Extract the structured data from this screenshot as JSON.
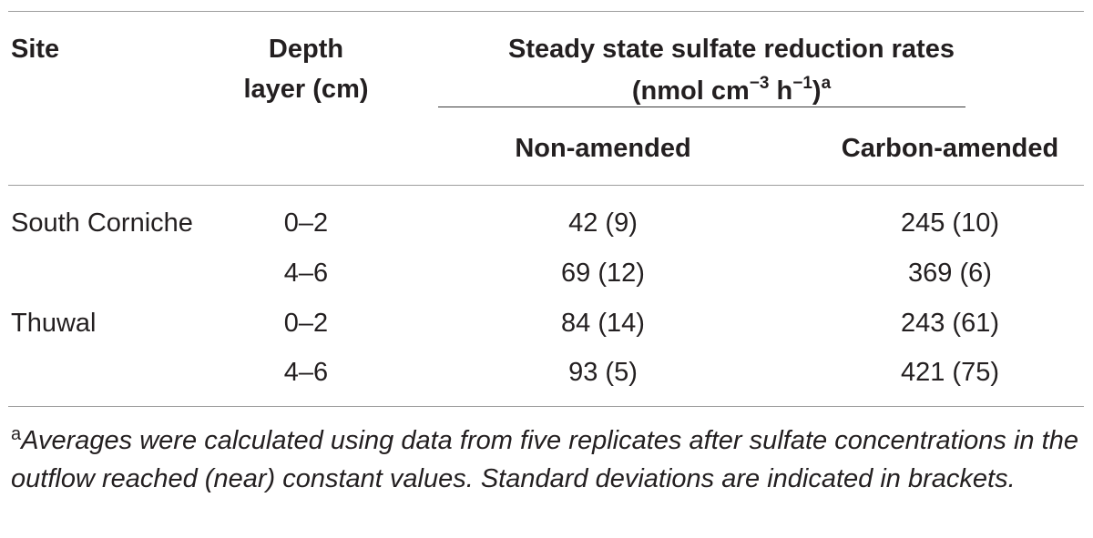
{
  "table": {
    "headers": {
      "site": "Site",
      "depth_line1": "Depth",
      "depth_line2": "layer (cm)",
      "rates_line1": "Steady state sulfate reduction rates",
      "rates_unit_prefix": "(nmol cm",
      "rates_unit_sup1": "−3",
      "rates_unit_mid": " h",
      "rates_unit_sup2": "−1",
      "rates_unit_suffix": ")",
      "rates_footnote_mark": "a",
      "non_amended": "Non-amended",
      "carbon_amended": "Carbon-amended"
    },
    "rows": [
      {
        "site": "South Corniche",
        "depth": "0–2",
        "non_amended": "42 (9)",
        "carbon_amended": "245 (10)"
      },
      {
        "site": "",
        "depth": "4–6",
        "non_amended": "69 (12)",
        "carbon_amended": "369 (6)"
      },
      {
        "site": "Thuwal",
        "depth": "0–2",
        "non_amended": "84 (14)",
        "carbon_amended": "243 (61)"
      },
      {
        "site": "",
        "depth": "4–6",
        "non_amended": "93 (5)",
        "carbon_amended": "421 (75)"
      }
    ]
  },
  "footnote": {
    "mark": "a",
    "text": "Averages were calculated using data from five replicates after sulfate concentrations in the outflow reached (near) constant values. Standard deviations are indicated in brackets."
  }
}
